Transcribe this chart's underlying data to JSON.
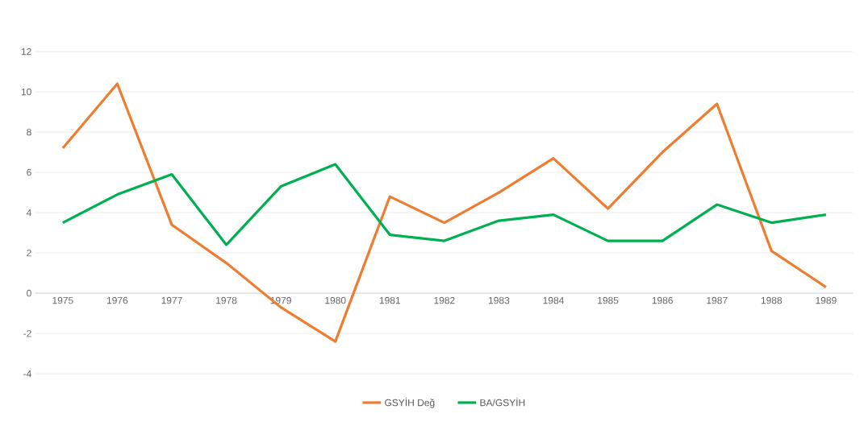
{
  "chart_data": {
    "type": "line",
    "categories": [
      "1975",
      "1976",
      "1977",
      "1978",
      "1979",
      "1980",
      "1981",
      "1982",
      "1983",
      "1984",
      "1985",
      "1986",
      "1987",
      "1988",
      "1989"
    ],
    "series": [
      {
        "name": "GSYİH Değ",
        "color": "#ed7d31",
        "values": [
          7.2,
          10.4,
          3.4,
          1.5,
          -0.7,
          -2.4,
          4.8,
          3.5,
          5.0,
          6.7,
          4.2,
          7.0,
          9.4,
          2.1,
          0.3
        ]
      },
      {
        "name": "BA/GSYİH",
        "color": "#00b050",
        "values": [
          3.5,
          4.9,
          5.9,
          2.4,
          5.3,
          6.4,
          2.9,
          2.6,
          3.6,
          3.9,
          2.6,
          2.6,
          4.4,
          3.5,
          3.9
        ]
      }
    ],
    "ylim": [
      -4,
      12
    ],
    "yticks": [
      -4,
      -2,
      0,
      2,
      4,
      6,
      8,
      10,
      12
    ],
    "grid": "y",
    "legend": "bottom"
  }
}
